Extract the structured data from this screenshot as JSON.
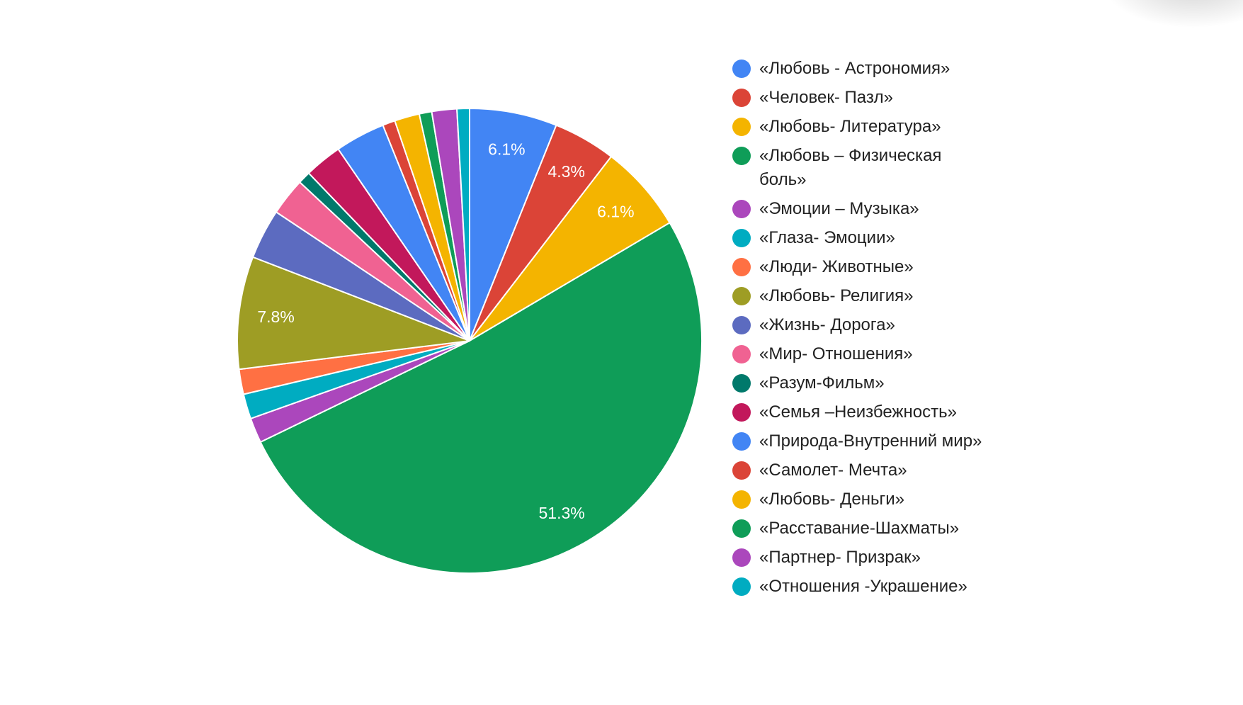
{
  "chart_data": {
    "type": "pie",
    "title": "",
    "start_angle_deg": 0,
    "direction": "clockwise",
    "legend_position": "right",
    "total_count_estimate": 115,
    "slices": [
      {
        "label": "«Любовь - Астрономия»",
        "value": 7,
        "percent": 6.1,
        "show_label": true,
        "color": "#4285f4"
      },
      {
        "label": "«Человек- Пазл»",
        "value": 5,
        "percent": 4.3,
        "show_label": true,
        "color": "#db4437"
      },
      {
        "label": "«Любовь- Литература»",
        "value": 7,
        "percent": 6.1,
        "show_label": true,
        "color": "#f4b400"
      },
      {
        "label": "«Любовь – Физическая боль»",
        "value": 59,
        "percent": 51.3,
        "show_label": true,
        "color": "#0f9d58"
      },
      {
        "label": "«Эмоции – Музыка»",
        "value": 2,
        "percent": 1.7,
        "show_label": false,
        "color": "#ab47bc"
      },
      {
        "label": "«Глаза- Эмоции»",
        "value": 2,
        "percent": 1.7,
        "show_label": false,
        "color": "#00acc1"
      },
      {
        "label": "«Люди- Животные»",
        "value": 2,
        "percent": 1.7,
        "show_label": false,
        "color": "#ff7043"
      },
      {
        "label": "«Любовь- Религия»",
        "value": 9,
        "percent": 7.8,
        "show_label": true,
        "color": "#9e9d24"
      },
      {
        "label": "«Жизнь- Дорога»",
        "value": 4,
        "percent": 3.5,
        "show_label": false,
        "color": "#5c6bc0"
      },
      {
        "label": "«Мир- Отношения»",
        "value": 3,
        "percent": 2.6,
        "show_label": false,
        "color": "#f06292"
      },
      {
        "label": "«Разум-Фильм»",
        "value": 1,
        "percent": 0.9,
        "show_label": false,
        "color": "#00796b"
      },
      {
        "label": "«Семья –Неизбежность»",
        "value": 3,
        "percent": 2.6,
        "show_label": false,
        "color": "#c2185b"
      },
      {
        "label": "«Природа-Внутренний мир»",
        "value": 4,
        "percent": 3.5,
        "show_label": false,
        "color": "#4285f4"
      },
      {
        "label": "«Самолет- Мечта»",
        "value": 1,
        "percent": 0.9,
        "show_label": false,
        "color": "#db4437"
      },
      {
        "label": "«Любовь- Деньги»",
        "value": 2,
        "percent": 1.7,
        "show_label": false,
        "color": "#f4b400"
      },
      {
        "label": "«Расставание-Шахматы»",
        "value": 1,
        "percent": 0.9,
        "show_label": false,
        "color": "#0f9d58"
      },
      {
        "label": "«Партнер- Призрак»",
        "value": 2,
        "percent": 1.7,
        "show_label": false,
        "color": "#ab47bc"
      },
      {
        "label": "«Отношения -Украшение»",
        "value": 1,
        "percent": 0.9,
        "show_label": false,
        "color": "#00acc1"
      }
    ]
  },
  "legend": {
    "items": [
      {
        "label": "«Любовь - Астрономия»",
        "color": "#4285f4"
      },
      {
        "label": "«Человек- Пазл»",
        "color": "#db4437"
      },
      {
        "label": "«Любовь- Литература»",
        "color": "#f4b400"
      },
      {
        "label": "«Любовь – Физическая боль»",
        "color": "#0f9d58"
      },
      {
        "label": "«Эмоции – Музыка»",
        "color": "#ab47bc"
      },
      {
        "label": "«Глаза- Эмоции»",
        "color": "#00acc1"
      },
      {
        "label": "«Люди- Животные»",
        "color": "#ff7043"
      },
      {
        "label": "«Любовь- Религия»",
        "color": "#9e9d24"
      },
      {
        "label": "«Жизнь- Дорога»",
        "color": "#5c6bc0"
      },
      {
        "label": "«Мир- Отношения»",
        "color": "#f06292"
      },
      {
        "label": "«Разум-Фильм»",
        "color": "#00796b"
      },
      {
        "label": "«Семья –Неизбежность»",
        "color": "#c2185b"
      },
      {
        "label": "«Природа-Внутренний мир»",
        "color": "#4285f4"
      },
      {
        "label": "«Самолет- Мечта»",
        "color": "#db4437"
      },
      {
        "label": "«Любовь- Деньги»",
        "color": "#f4b400"
      },
      {
        "label": "«Расставание-Шахматы»",
        "color": "#0f9d58"
      },
      {
        "label": "«Партнер- Призрак»",
        "color": "#ab47bc"
      },
      {
        "label": "«Отношения -Украшение»",
        "color": "#00acc1"
      }
    ]
  }
}
